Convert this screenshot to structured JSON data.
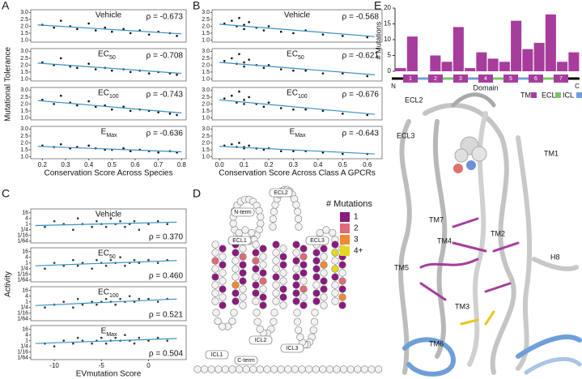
{
  "chart_data": [
    {
      "type": "scatter",
      "label": "A",
      "xlabel": "Conservation Score Across Species",
      "ylabel": "Mutational Tolerance",
      "xlim": [
        0.15,
        0.82
      ],
      "xticks": [
        0.2,
        0.3,
        0.4,
        0.5,
        0.6,
        0.7,
        0.8
      ],
      "ylim": [
        0.85,
        3.2
      ],
      "yticks": [
        {
          "value": 1,
          "label": "1.0"
        },
        1.5,
        {
          "value": 2,
          "label": "2.0"
        },
        2.5,
        {
          "value": 3,
          "label": "3.0"
        }
      ],
      "point_color": "#111111",
      "fit_color": "#3b8fc0",
      "panels": [
        {
          "title": "Vehicle",
          "stat": "ρ = -0.673",
          "x": [
            0.2,
            0.25,
            0.28,
            0.32,
            0.35,
            0.4,
            0.43,
            0.47,
            0.5,
            0.55,
            0.58,
            0.62,
            0.66,
            0.7,
            0.75,
            0.78
          ],
          "y": [
            2.1,
            1.9,
            2.4,
            2.0,
            1.8,
            2.2,
            1.7,
            1.9,
            1.6,
            1.8,
            1.5,
            1.7,
            1.4,
            1.6,
            1.5,
            1.3
          ],
          "fit_x": [
            0.18,
            0.8
          ],
          "fit_y": [
            2.1,
            1.45
          ]
        },
        {
          "title": "EC",
          "title_sub": "50",
          "stat": "ρ = -0.708",
          "x": [
            0.2,
            0.25,
            0.28,
            0.32,
            0.35,
            0.4,
            0.43,
            0.47,
            0.5,
            0.55,
            0.58,
            0.62,
            0.66,
            0.7,
            0.75,
            0.78
          ],
          "y": [
            2.2,
            2.0,
            2.5,
            1.9,
            1.8,
            2.1,
            1.7,
            1.8,
            1.6,
            1.7,
            1.5,
            1.6,
            1.4,
            1.5,
            1.4,
            1.3
          ],
          "fit_x": [
            0.18,
            0.8
          ],
          "fit_y": [
            2.15,
            1.4
          ]
        },
        {
          "title": "EC",
          "title_sub": "100",
          "stat": "ρ = -0.743",
          "x": [
            0.2,
            0.25,
            0.28,
            0.32,
            0.35,
            0.4,
            0.43,
            0.47,
            0.5,
            0.55,
            0.58,
            0.62,
            0.66,
            0.7,
            0.75,
            0.78
          ],
          "y": [
            2.3,
            2.0,
            2.6,
            2.1,
            1.9,
            2.2,
            1.8,
            1.9,
            1.6,
            1.8,
            1.5,
            1.6,
            1.5,
            1.4,
            1.3,
            1.2
          ],
          "fit_x": [
            0.18,
            0.8
          ],
          "fit_y": [
            2.25,
            1.35
          ]
        },
        {
          "title": "E",
          "title_sub": "Max",
          "stat": "ρ = -0.636",
          "x": [
            0.2,
            0.25,
            0.28,
            0.32,
            0.35,
            0.4,
            0.43,
            0.47,
            0.5,
            0.55,
            0.58,
            0.62,
            0.66,
            0.7,
            0.75,
            0.78
          ],
          "y": [
            1.8,
            1.7,
            1.9,
            1.6,
            1.7,
            1.8,
            1.6,
            1.5,
            1.5,
            1.6,
            1.4,
            1.5,
            1.4,
            1.3,
            1.4,
            1.3
          ],
          "fit_x": [
            0.18,
            0.8
          ],
          "fit_y": [
            1.75,
            1.35
          ]
        }
      ]
    },
    {
      "type": "scatter",
      "label": "B",
      "xlabel": "Conservation Score Across Class A GPCRs",
      "xlim": [
        -0.03,
        0.66
      ],
      "xticks": [
        {
          "value": 0,
          "label": "0.0"
        },
        0.1,
        0.2,
        0.3,
        0.4,
        0.5,
        0.6
      ],
      "ylim": [
        0.85,
        3.2
      ],
      "yticks": [
        {
          "value": 1,
          "label": "1.0"
        },
        1.5,
        {
          "value": 2,
          "label": "2.0"
        },
        2.5,
        {
          "value": 3,
          "label": "3.0"
        }
      ],
      "point_color": "#111111",
      "fit_color": "#3b8fc0",
      "panels": [
        {
          "title": "Vehicle",
          "stat": "ρ = -0.568",
          "x": [
            0.02,
            0.05,
            0.07,
            0.08,
            0.1,
            0.1,
            0.12,
            0.15,
            0.18,
            0.2,
            0.25,
            0.3,
            0.35,
            0.42,
            0.5,
            0.6
          ],
          "y": [
            2.2,
            2.4,
            2.0,
            2.6,
            2.1,
            1.8,
            2.3,
            1.9,
            1.7,
            2.0,
            1.6,
            1.5,
            1.7,
            1.4,
            1.3,
            1.2
          ],
          "fit_x": [
            0,
            0.63
          ],
          "fit_y": [
            2.15,
            1.25
          ]
        },
        {
          "title": "EC",
          "title_sub": "50",
          "stat": "ρ = -0.621",
          "x": [
            0.02,
            0.05,
            0.07,
            0.08,
            0.1,
            0.1,
            0.12,
            0.15,
            0.18,
            0.2,
            0.25,
            0.3,
            0.35,
            0.42,
            0.5,
            0.6
          ],
          "y": [
            2.3,
            2.5,
            2.1,
            2.8,
            2.2,
            1.9,
            2.4,
            2.0,
            1.8,
            2.0,
            1.7,
            1.6,
            1.6,
            1.4,
            1.4,
            1.2
          ],
          "fit_x": [
            0,
            0.63
          ],
          "fit_y": [
            2.2,
            1.3
          ]
        },
        {
          "title": "EC",
          "title_sub": "100",
          "stat": "ρ = -0.676",
          "x": [
            0.02,
            0.05,
            0.07,
            0.08,
            0.1,
            0.1,
            0.12,
            0.15,
            0.18,
            0.2,
            0.25,
            0.3,
            0.35,
            0.42,
            0.5,
            0.6
          ],
          "y": [
            2.4,
            2.6,
            2.1,
            2.9,
            2.3,
            2.0,
            2.5,
            2.0,
            1.8,
            2.1,
            1.7,
            1.6,
            1.6,
            1.5,
            1.3,
            1.2
          ],
          "fit_x": [
            0,
            0.63
          ],
          "fit_y": [
            2.3,
            1.25
          ]
        },
        {
          "title": "E",
          "title_sub": "Max",
          "stat": "ρ = -0.643",
          "x": [
            0.02,
            0.05,
            0.07,
            0.08,
            0.1,
            0.1,
            0.12,
            0.15,
            0.18,
            0.2,
            0.25,
            0.3,
            0.35,
            0.42,
            0.5,
            0.6
          ],
          "y": [
            1.8,
            1.9,
            1.7,
            2.0,
            1.7,
            1.6,
            1.8,
            1.6,
            1.5,
            1.6,
            1.4,
            1.4,
            1.4,
            1.3,
            1.2,
            1.2
          ],
          "fit_x": [
            0,
            0.63
          ],
          "fit_y": [
            1.75,
            1.2
          ]
        }
      ]
    },
    {
      "type": "scatter",
      "label": "C",
      "xlabel": "EVmutation Score",
      "ylabel": "Activity",
      "log_y": true,
      "xlim": [
        -12.5,
        4
      ],
      "xticks": [
        -10,
        -5,
        0
      ],
      "ylim": [
        0.01,
        40
      ],
      "yticks": [
        16,
        4,
        1,
        {
          "value": 0.25,
          "label": "1/4"
        },
        {
          "value": 0.0625,
          "label": "1/16"
        },
        {
          "value": 0.015625,
          "label": "1/64"
        }
      ],
      "point_color": "#1d3b44",
      "fit_color": "#3b8fc0",
      "stat_bottom": true,
      "panels": [
        {
          "title": "Vehicle",
          "stat": "ρ = 0.370",
          "x": [
            -11,
            -10,
            -9,
            -8,
            -7.5,
            -7,
            -6,
            -5.5,
            -5,
            -4.5,
            -4,
            -3.5,
            -3,
            -2.5,
            -2,
            -1.5,
            -1,
            0,
            1,
            2
          ],
          "y": [
            0.5,
            2,
            1,
            0.25,
            4,
            1,
            0.5,
            2,
            1,
            0.5,
            4,
            1,
            2,
            0.5,
            1,
            2,
            0.25,
            1,
            2,
            1
          ],
          "fit_x": [
            -12,
            3
          ],
          "fit_y": [
            0.7,
            1.6
          ]
        },
        {
          "title": "EC",
          "title_sub": "50",
          "stat": "ρ = 0.460",
          "x": [
            -11,
            -10,
            -9,
            -8,
            -7.5,
            -7,
            -6,
            -5.5,
            -5,
            -4.5,
            -4,
            -3.5,
            -3,
            -2.5,
            -2,
            -1.5,
            -1,
            0,
            1,
            2
          ],
          "y": [
            0.25,
            1,
            0.5,
            2,
            0.5,
            1,
            0.25,
            2,
            1,
            0.5,
            2,
            1,
            4,
            0.5,
            1,
            2,
            1,
            2,
            1,
            2
          ],
          "fit_x": [
            -12,
            3
          ],
          "fit_y": [
            0.5,
            1.8
          ]
        },
        {
          "title": "EC",
          "title_sub": "100",
          "stat": "ρ = 0.521",
          "x": [
            -11,
            -10,
            -9,
            -8,
            -7.5,
            -7,
            -6,
            -5.5,
            -5,
            -4.5,
            -4,
            -3.5,
            -3,
            -2.5,
            -2,
            -1.5,
            -1,
            0,
            1,
            2
          ],
          "y": [
            0.25,
            0.5,
            1,
            0.25,
            2,
            0.5,
            1,
            0.5,
            1,
            2,
            1,
            0.5,
            2,
            1,
            4,
            1,
            2,
            2,
            1,
            2
          ],
          "fit_x": [
            -12,
            3
          ],
          "fit_y": [
            0.4,
            2
          ]
        },
        {
          "title": "E",
          "title_sub": "Max",
          "stat": "ρ = 0.504",
          "x": [
            -11,
            -10,
            -9,
            -8,
            -7.5,
            -7,
            -6,
            -5.5,
            -5,
            -4.5,
            -4,
            -3.5,
            -3,
            -2.5,
            -2,
            -1.5,
            -1,
            0,
            1,
            2
          ],
          "y": [
            0.5,
            0.25,
            1,
            0.5,
            2,
            1,
            0.5,
            1,
            2,
            0.5,
            1,
            2,
            1,
            4,
            1,
            0.5,
            2,
            1,
            2,
            1
          ],
          "fit_x": [
            -12,
            3
          ],
          "fit_y": [
            0.5,
            1.7
          ]
        }
      ]
    },
    {
      "type": "bar",
      "label": "E",
      "ylabel": "# Mutations",
      "xlabel": "Domain",
      "ylim": [
        0,
        20
      ],
      "yticks": [
        0,
        5,
        10,
        15,
        20
      ],
      "color": "#a63d9c",
      "categories": [
        null,
        null,
        null,
        null,
        null,
        null,
        null,
        null,
        null,
        null,
        null,
        null,
        null,
        null,
        null,
        null
      ],
      "values": [
        1,
        11,
        0,
        5,
        3,
        14,
        1,
        6,
        4,
        3,
        16,
        7,
        9,
        18,
        3,
        6
      ],
      "domain_labels": [
        "N",
        "1",
        "2",
        "3",
        "4",
        "5",
        "6",
        "7",
        "C"
      ],
      "legend": [
        {
          "name": "TM",
          "color": "#a63d9c"
        },
        {
          "name": "ECL",
          "color": "#7cc46a"
        },
        {
          "name": "ICL",
          "color": "#6f9fd8"
        }
      ]
    }
  ],
  "snake_plot": {
    "label": "D",
    "legend_title": "# Mutations",
    "legend": [
      {
        "name": "1",
        "color": "#8b1a7e"
      },
      {
        "name": "2",
        "color": "#e06a78"
      },
      {
        "name": "3",
        "color": "#f08a30"
      },
      {
        "name": "4+",
        "color": "#e4d820"
      }
    ],
    "loop_labels": [
      "N-term",
      "ECL1",
      "ECL2",
      "ECL3",
      "ICL1",
      "ICL2",
      "ICL3",
      "C-term"
    ],
    "helix_counts": [
      [
        0,
        1,
        0,
        0,
        2,
        1,
        0,
        0,
        1,
        0,
        0,
        1,
        0,
        0,
        0,
        1
      ],
      [
        1,
        0,
        1,
        2,
        0,
        1,
        0,
        1,
        0,
        1,
        3,
        0,
        1,
        0,
        1,
        0
      ],
      [
        0,
        1,
        1,
        0,
        2,
        0,
        1,
        1,
        0,
        2,
        1,
        0,
        1,
        1,
        0,
        1
      ],
      [
        1,
        0,
        0,
        1,
        0,
        1,
        0,
        0,
        1,
        0,
        0,
        1,
        0,
        1,
        0,
        0
      ],
      [
        1,
        1,
        0,
        2,
        1,
        1,
        0,
        1,
        1,
        0,
        1,
        2,
        1,
        0,
        1,
        1
      ],
      [
        0,
        1,
        1,
        0,
        1,
        3,
        1,
        0,
        1,
        1,
        0,
        1,
        1,
        0,
        1,
        0
      ],
      [
        1,
        0,
        4,
        1,
        0,
        1,
        4,
        0,
        1,
        2,
        0,
        1,
        0,
        3,
        0,
        1
      ]
    ]
  },
  "structure": {
    "labels": [
      "ECL2",
      "ECL3",
      "TM1",
      "TM7",
      "TM2",
      "TM4",
      "TM5",
      "TM3",
      "TM6",
      "H8"
    ]
  }
}
